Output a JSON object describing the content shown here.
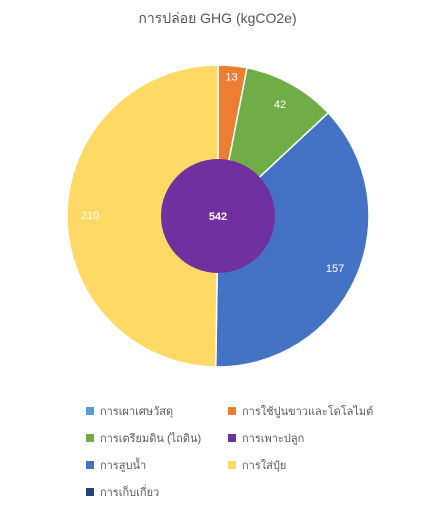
{
  "chart_data": {
    "type": "pie",
    "title": "การปล่อย GHG (kgCO2e)",
    "outer_series": {
      "categories": [
        "การใช้ปูนขาวและโดโลไมต์",
        "การเตรียมดิน (ไถดิน)",
        "การสูบน้ำ",
        "การใส่ปุ๋ย"
      ],
      "values": [
        13,
        42,
        157,
        210
      ],
      "colors": [
        "#ED7D31",
        "#70AD47",
        "#4472C4",
        "#FFD966"
      ]
    },
    "inner_series": {
      "category": "การเพาะปลูก",
      "value": 542,
      "color": "#7030A0"
    },
    "legend": {
      "placement": "bottom",
      "entries": [
        {
          "label": "การเผาเศษวัสดุ",
          "color": "#5B9BD5"
        },
        {
          "label": "การใช้ปูนขาวและโดโลไมต์",
          "color": "#ED7D31"
        },
        {
          "label": "การเตรียมดิน (ไถดิน)",
          "color": "#70AD47"
        },
        {
          "label": "การเพาะปลูก",
          "color": "#7030A0"
        },
        {
          "label": "การสูบน้ำ",
          "color": "#4472C4"
        },
        {
          "label": "การใส่ปุ๋ย",
          "color": "#FFD966"
        },
        {
          "label": "การเก็บเกี่ยว",
          "color": "#264478"
        }
      ]
    }
  }
}
